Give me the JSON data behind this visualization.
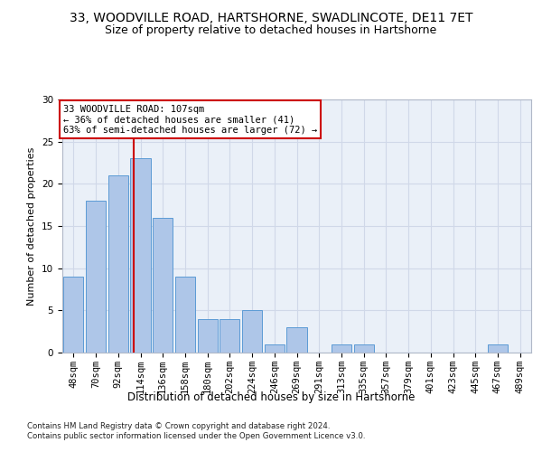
{
  "title_line1": "33, WOODVILLE ROAD, HARTSHORNE, SWADLINCOTE, DE11 7ET",
  "title_line2": "Size of property relative to detached houses in Hartshorne",
  "xlabel": "Distribution of detached houses by size in Hartshorne",
  "ylabel": "Number of detached properties",
  "bin_labels": [
    "48sqm",
    "70sqm",
    "92sqm",
    "114sqm",
    "136sqm",
    "158sqm",
    "180sqm",
    "202sqm",
    "224sqm",
    "246sqm",
    "269sqm",
    "291sqm",
    "313sqm",
    "335sqm",
    "357sqm",
    "379sqm",
    "401sqm",
    "423sqm",
    "445sqm",
    "467sqm",
    "489sqm"
  ],
  "bar_values": [
    9,
    18,
    21,
    23,
    16,
    9,
    4,
    4,
    5,
    1,
    3,
    0,
    1,
    1,
    0,
    0,
    0,
    0,
    0,
    1,
    0
  ],
  "bar_color": "#aec6e8",
  "bar_edge_color": "#5b9bd5",
  "vline_color": "#cc0000",
  "annotation_text": "33 WOODVILLE ROAD: 107sqm\n← 36% of detached houses are smaller (41)\n63% of semi-detached houses are larger (72) →",
  "annotation_box_color": "#ffffff",
  "annotation_box_edge": "#cc0000",
  "ylim": [
    0,
    30
  ],
  "yticks": [
    0,
    5,
    10,
    15,
    20,
    25,
    30
  ],
  "grid_color": "#d0d8e8",
  "background_color": "#eaf0f8",
  "footer_text": "Contains HM Land Registry data © Crown copyright and database right 2024.\nContains public sector information licensed under the Open Government Licence v3.0.",
  "title_fontsize": 10,
  "subtitle_fontsize": 9,
  "tick_fontsize": 7.5,
  "ylabel_fontsize": 8,
  "xlabel_fontsize": 8.5
}
